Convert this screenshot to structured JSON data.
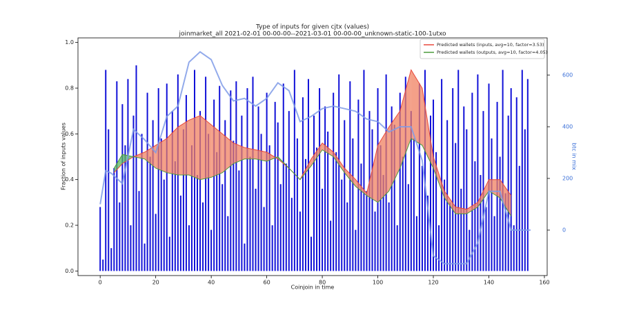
{
  "chart_data": {
    "type": "bar",
    "title": "Type of inputs for given cjtx (values)",
    "subtitle": "joinmarket_all 2021-02-01 00-00-00--2021-03-01 00-00-00_unknown-static-100-1utxo",
    "xlabel": "Coinjoin in time",
    "ylabel": "Fraction of inputs values",
    "y2label": "btc in mix",
    "xlim": [
      -8,
      161
    ],
    "xticks": [
      0,
      20,
      40,
      60,
      80,
      100,
      120,
      140,
      160
    ],
    "ylim": [
      -0.02,
      1.02
    ],
    "yticks": [
      {
        "value": 0,
        "label": "0.0"
      },
      0.2,
      0.4,
      0.6,
      0.8,
      {
        "value": 1,
        "label": "1.0"
      }
    ],
    "y2lim": [
      -176,
      744
    ],
    "y2ticks": [
      0,
      200,
      400,
      600
    ],
    "legend": "upper right",
    "fill_between": true,
    "series": [
      {
        "type": "bar",
        "color": "#1010d8",
        "x": [
          0,
          1,
          2,
          3,
          4,
          5,
          6,
          7,
          8,
          9,
          10,
          11,
          12,
          13,
          14,
          15,
          16,
          17,
          18,
          19,
          20,
          21,
          22,
          23,
          24,
          25,
          26,
          27,
          28,
          29,
          30,
          31,
          32,
          33,
          34,
          35,
          36,
          37,
          38,
          39,
          40,
          41,
          42,
          43,
          44,
          45,
          46,
          47,
          48,
          49,
          50,
          51,
          52,
          53,
          54,
          55,
          56,
          57,
          58,
          59,
          60,
          61,
          62,
          63,
          64,
          65,
          66,
          67,
          68,
          69,
          70,
          71,
          72,
          73,
          74,
          75,
          76,
          77,
          78,
          79,
          80,
          81,
          82,
          83,
          84,
          85,
          86,
          87,
          88,
          89,
          90,
          91,
          92,
          93,
          94,
          95,
          96,
          97,
          98,
          99,
          100,
          101,
          102,
          103,
          104,
          105,
          106,
          107,
          108,
          109,
          110,
          111,
          112,
          113,
          114,
          115,
          116,
          117,
          118,
          119,
          120,
          121,
          122,
          123,
          124,
          125,
          126,
          127,
          128,
          129,
          130,
          131,
          132,
          133,
          134,
          135,
          136,
          137,
          138,
          139,
          140,
          141,
          142,
          143,
          144,
          145,
          146,
          147,
          148,
          149,
          150,
          151,
          152,
          153,
          154
        ],
        "values": [
          0.28,
          0.05,
          0.88,
          0.62,
          0.1,
          0.45,
          0.83,
          0.3,
          0.73,
          0.55,
          0.84,
          0.2,
          0.68,
          0.9,
          0.35,
          0.6,
          0.12,
          0.78,
          0.5,
          0.66,
          0.25,
          0.8,
          0.58,
          0.4,
          0.82,
          0.15,
          0.7,
          0.48,
          0.86,
          0.33,
          0.62,
          0.77,
          0.2,
          0.55,
          0.88,
          0.42,
          0.7,
          0.3,
          0.85,
          0.6,
          0.18,
          0.75,
          0.52,
          0.81,
          0.38,
          0.66,
          0.24,
          0.79,
          0.57,
          0.83,
          0.44,
          0.68,
          0.12,
          0.8,
          0.5,
          0.85,
          0.36,
          0.72,
          0.6,
          0.28,
          0.78,
          0.55,
          0.2,
          0.74,
          0.65,
          0.38,
          0.82,
          0.47,
          0.7,
          0.32,
          0.88,
          0.58,
          0.26,
          0.76,
          0.49,
          0.84,
          0.15,
          0.68,
          0.54,
          0.8,
          0.36,
          0.72,
          0.61,
          0.22,
          0.78,
          0.52,
          0.86,
          0.4,
          0.66,
          0.3,
          0.83,
          0.58,
          0.18,
          0.75,
          0.47,
          0.88,
          0.35,
          0.7,
          0.62,
          0.26,
          0.8,
          0.55,
          0.42,
          0.86,
          0.3,
          0.72,
          0.64,
          0.2,
          0.78,
          0.5,
          0.85,
          0.38,
          0.7,
          0.58,
          0.24,
          0.82,
          0.46,
          0.88,
          0.33,
          0.68,
          0.75,
          0.52,
          0.2,
          0.84,
          0.4,
          0.66,
          0.3,
          0.8,
          0.56,
          0.88,
          0.36,
          0.72,
          0.62,
          0.18,
          0.78,
          0.48,
          0.86,
          0.42,
          0.7,
          0.28,
          0.82,
          0.58,
          0.24,
          0.74,
          0.5,
          0.88,
          0.34,
          0.68,
          0.8,
          0.2,
          0.76,
          0.46,
          0.88,
          0.62,
          0.84
        ]
      },
      {
        "type": "line",
        "name": "Predicted wallets (inputs, avg=10, factor=3.53)",
        "color": "#e8473a",
        "fill": "#f08060",
        "x": [
          5,
          8,
          12,
          16,
          20,
          24,
          28,
          32,
          36,
          40,
          44,
          48,
          52,
          56,
          60,
          64,
          68,
          72,
          76,
          80,
          84,
          88,
          92,
          96,
          100,
          104,
          108,
          112,
          116,
          120,
          124,
          128,
          132,
          136,
          140,
          144,
          148
        ],
        "values": [
          0.43,
          0.47,
          0.5,
          0.52,
          0.55,
          0.58,
          0.63,
          0.66,
          0.68,
          0.64,
          0.6,
          0.56,
          0.54,
          0.53,
          0.52,
          0.49,
          0.45,
          0.4,
          0.49,
          0.56,
          0.52,
          0.45,
          0.4,
          0.34,
          0.55,
          0.63,
          0.7,
          0.88,
          0.8,
          0.5,
          0.35,
          0.28,
          0.27,
          0.3,
          0.4,
          0.4,
          0.33
        ]
      },
      {
        "type": "line",
        "name": "Predicted wallets (outputs, avg=10, factor=4.05)",
        "color": "#4a9a3a",
        "fill": "#5cb85c",
        "x": [
          5,
          8,
          12,
          16,
          20,
          24,
          28,
          32,
          36,
          40,
          44,
          48,
          52,
          56,
          60,
          64,
          68,
          72,
          76,
          80,
          84,
          88,
          92,
          96,
          100,
          104,
          108,
          112,
          116,
          120,
          124,
          128,
          132,
          136,
          140,
          144,
          148
        ],
        "values": [
          0.45,
          0.51,
          0.5,
          0.49,
          0.45,
          0.43,
          0.42,
          0.42,
          0.4,
          0.41,
          0.43,
          0.47,
          0.49,
          0.49,
          0.48,
          0.5,
          0.45,
          0.4,
          0.46,
          0.53,
          0.5,
          0.43,
          0.37,
          0.33,
          0.3,
          0.35,
          0.45,
          0.58,
          0.55,
          0.45,
          0.32,
          0.25,
          0.25,
          0.28,
          0.35,
          0.32,
          0.24
        ]
      },
      {
        "type": "line",
        "axis": "y2",
        "color": "#7f9be8",
        "x": [
          0,
          2,
          4,
          8,
          12,
          16,
          20,
          24,
          28,
          32,
          36,
          40,
          44,
          48,
          52,
          56,
          60,
          64,
          68,
          72,
          76,
          80,
          84,
          88,
          92,
          96,
          100,
          104,
          108,
          112,
          116,
          120,
          124,
          128,
          132,
          136,
          140,
          144,
          148,
          152,
          155
        ],
        "values": [
          100,
          230,
          220,
          180,
          390,
          350,
          300,
          440,
          480,
          650,
          690,
          660,
          560,
          500,
          510,
          480,
          510,
          570,
          540,
          420,
          440,
          470,
          480,
          470,
          460,
          430,
          420,
          380,
          400,
          400,
          270,
          -100,
          -130,
          -130,
          -130,
          -50,
          150,
          150,
          0,
          0,
          0
        ]
      }
    ]
  }
}
